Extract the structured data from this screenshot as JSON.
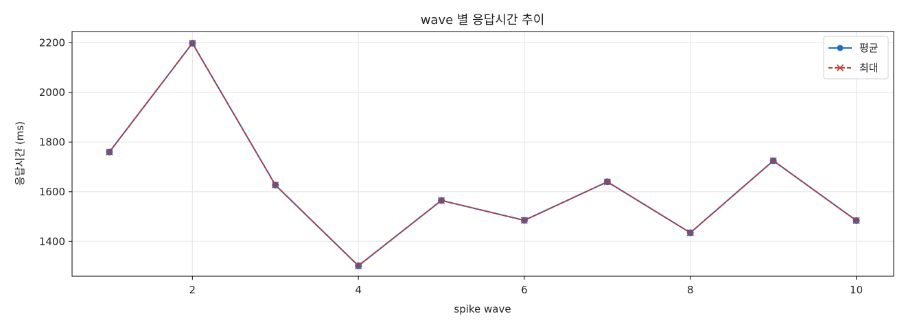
{
  "chart_data": {
    "type": "line",
    "title": "wave 별 응답시간 추이",
    "xlabel": "spike wave",
    "ylabel": "응답시간 (ms)",
    "x": [
      1,
      2,
      3,
      4,
      5,
      6,
      7,
      8,
      9,
      10
    ],
    "xlim": [
      0.55,
      10.45
    ],
    "ylim": [
      1260,
      2245
    ],
    "xticks": [
      2,
      4,
      6,
      8,
      10
    ],
    "yticks": [
      1400,
      1600,
      1800,
      2000,
      2200
    ],
    "grid": true,
    "legend_position": "top-right",
    "series": [
      {
        "name": "평균",
        "color": "#1f6fc0",
        "marker": "circle",
        "linestyle": "solid",
        "values": [
          1760,
          2198,
          1627,
          1302,
          1565,
          1485,
          1640,
          1435,
          1725,
          1484
        ]
      },
      {
        "name": "최대",
        "color": "#c83232",
        "marker": "x",
        "linestyle": "dashed",
        "values": [
          1760,
          2198,
          1627,
          1302,
          1565,
          1485,
          1640,
          1435,
          1725,
          1484
        ]
      }
    ]
  }
}
